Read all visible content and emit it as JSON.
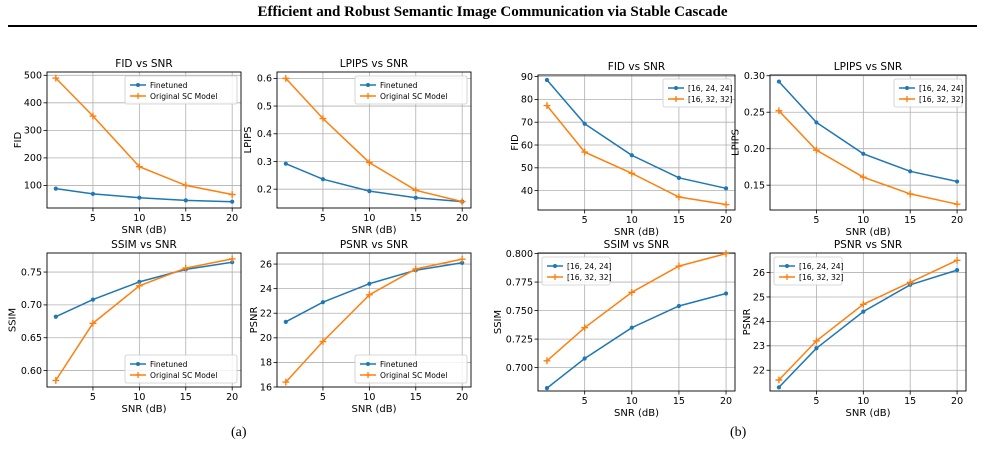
{
  "header": {
    "title": "Efficient and Robust Semantic Image Communication via Stable Cascade"
  },
  "captions": {
    "a": "(a)",
    "b": "(b)"
  },
  "colors": {
    "blue": "#1f77b4",
    "orange": "#ff7f0e",
    "grid": "#b0b0b0"
  },
  "chart_data": [
    {
      "type": "line",
      "title": "FID vs SNR",
      "xlabel": "SNR (dB)",
      "ylabel": "FID",
      "x": [
        1,
        5,
        10,
        15,
        20
      ],
      "xticks": [
        5,
        10,
        15,
        20
      ],
      "xlim": [
        0.05,
        20.95
      ],
      "yticks": [
        100,
        200,
        300,
        400,
        500
      ],
      "ytick_labels": [
        "100",
        "200",
        "300",
        "400",
        "500"
      ],
      "ylim": [
        18,
        512
      ],
      "legend": "top-right",
      "series": [
        {
          "name": "Finetuned",
          "values": [
            88.5,
            69.3,
            55.5,
            45.6,
            41.0
          ]
        },
        {
          "name": "Original SC Model",
          "values": [
            490,
            352,
            168,
            100,
            67
          ]
        }
      ]
    },
    {
      "type": "line",
      "title": "LPIPS vs SNR",
      "xlabel": "SNR (dB)",
      "ylabel": "LPIPS",
      "x": [
        1,
        5,
        10,
        15,
        20
      ],
      "xticks": [
        5,
        10,
        15,
        20
      ],
      "xlim": [
        0.05,
        20.95
      ],
      "yticks": [
        0.2,
        0.3,
        0.4,
        0.5,
        0.6
      ],
      "ytick_labels": [
        "0.2",
        "0.3",
        "0.4",
        "0.5",
        "0.6"
      ],
      "ylim": [
        0.132,
        0.623
      ],
      "legend": "top-right",
      "series": [
        {
          "name": "Finetuned",
          "values": [
            0.292,
            0.236,
            0.193,
            0.169,
            0.155
          ]
        },
        {
          "name": "Original SC Model",
          "values": [
            0.6,
            0.455,
            0.296,
            0.196,
            0.155
          ]
        }
      ]
    },
    {
      "type": "line",
      "title": "FID vs SNR",
      "xlabel": "SNR (dB)",
      "ylabel": "FID",
      "x": [
        1,
        5,
        10,
        15,
        20
      ],
      "xticks": [
        5,
        10,
        15,
        20
      ],
      "xlim": [
        0.05,
        20.95
      ],
      "yticks": [
        40,
        50,
        60,
        70,
        80,
        90
      ],
      "ytick_labels": [
        "40",
        "50",
        "60",
        "70",
        "80",
        "90"
      ],
      "ylim": [
        31.5,
        90.7
      ],
      "legend": "top-right",
      "series": [
        {
          "name": "[16, 24, 24]",
          "values": [
            88.5,
            69.3,
            55.5,
            45.6,
            41.0
          ]
        },
        {
          "name": "[16, 32, 32]",
          "values": [
            77.3,
            56.9,
            47.6,
            37.2,
            33.9
          ]
        }
      ]
    },
    {
      "type": "line",
      "title": "LPIPS vs SNR",
      "xlabel": "SNR (dB)",
      "ylabel": "LPIPS",
      "x": [
        1,
        5,
        10,
        15,
        20
      ],
      "xticks": [
        5,
        10,
        15,
        20
      ],
      "xlim": [
        0.05,
        20.95
      ],
      "yticks": [
        0.15,
        0.2,
        0.25,
        0.3
      ],
      "ytick_labels": [
        "0.15",
        "0.20",
        "0.25",
        "0.30"
      ],
      "ylim": [
        0.116,
        0.301
      ],
      "legend": "top-right",
      "series": [
        {
          "name": "[16, 24, 24]",
          "values": [
            0.292,
            0.236,
            0.193,
            0.169,
            0.155
          ]
        },
        {
          "name": "[16, 32, 32]",
          "values": [
            0.252,
            0.198,
            0.161,
            0.138,
            0.124
          ]
        }
      ]
    },
    {
      "type": "line",
      "title": "SSIM vs SNR",
      "xlabel": "SNR (dB)",
      "ylabel": "SSIM",
      "x": [
        1,
        5,
        10,
        15,
        20
      ],
      "xticks": [
        5,
        10,
        15,
        20
      ],
      "xlim": [
        0.05,
        20.95
      ],
      "yticks": [
        0.6,
        0.65,
        0.7,
        0.75
      ],
      "ytick_labels": [
        "0.60",
        "0.65",
        "0.70",
        "0.75"
      ],
      "ylim": [
        0.575,
        0.779
      ],
      "legend": "bottom-right",
      "series": [
        {
          "name": "Finetuned",
          "values": [
            0.682,
            0.708,
            0.735,
            0.754,
            0.765
          ]
        },
        {
          "name": "Original SC Model",
          "values": [
            0.585,
            0.672,
            0.729,
            0.756,
            0.77
          ]
        }
      ]
    },
    {
      "type": "line",
      "title": "PSNR vs SNR",
      "xlabel": "SNR (dB)",
      "ylabel": "PSNR",
      "x": [
        1,
        5,
        10,
        15,
        20
      ],
      "xticks": [
        5,
        10,
        15,
        20
      ],
      "xlim": [
        0.05,
        20.95
      ],
      "yticks": [
        16,
        18,
        20,
        22,
        24,
        26
      ],
      "ytick_labels": [
        "16",
        "18",
        "20",
        "22",
        "24",
        "26"
      ],
      "ylim": [
        16.0,
        26.9
      ],
      "legend": "bottom-right",
      "series": [
        {
          "name": "Finetuned",
          "values": [
            21.3,
            22.9,
            24.4,
            25.5,
            26.1
          ]
        },
        {
          "name": "Original SC Model",
          "values": [
            16.4,
            19.7,
            23.5,
            25.6,
            26.4
          ]
        }
      ]
    },
    {
      "type": "line",
      "title": "SSIM vs SNR",
      "xlabel": "SNR (dB)",
      "ylabel": "SSIM",
      "x": [
        1,
        5,
        10,
        15,
        20
      ],
      "xticks": [
        5,
        10,
        15,
        20
      ],
      "xlim": [
        0.05,
        20.95
      ],
      "yticks": [
        0.7,
        0.725,
        0.75,
        0.775,
        0.8
      ],
      "ytick_labels": [
        "0.700",
        "0.725",
        "0.750",
        "0.775",
        "0.800"
      ],
      "ylim": [
        0.6795,
        0.8005
      ],
      "legend": "top-left",
      "series": [
        {
          "name": "[16, 24, 24]",
          "values": [
            0.682,
            0.708,
            0.735,
            0.754,
            0.765
          ]
        },
        {
          "name": "[16, 32, 32]",
          "values": [
            0.706,
            0.735,
            0.766,
            0.789,
            0.8
          ]
        }
      ]
    },
    {
      "type": "line",
      "title": "PSNR vs SNR",
      "xlabel": "SNR (dB)",
      "ylabel": "PSNR",
      "x": [
        1,
        5,
        10,
        15,
        20
      ],
      "xticks": [
        5,
        10,
        15,
        20
      ],
      "xlim": [
        0.05,
        20.95
      ],
      "yticks": [
        22,
        23,
        24,
        25,
        26
      ],
      "ytick_labels": [
        "22",
        "23",
        "24",
        "25",
        "26"
      ],
      "ylim": [
        21.15,
        26.8
      ],
      "legend": "top-left",
      "series": [
        {
          "name": "[16, 24, 24]",
          "values": [
            21.3,
            22.9,
            24.4,
            25.5,
            26.1
          ]
        },
        {
          "name": "[16, 32, 32]",
          "values": [
            21.6,
            23.2,
            24.7,
            25.6,
            26.5
          ]
        }
      ]
    }
  ]
}
